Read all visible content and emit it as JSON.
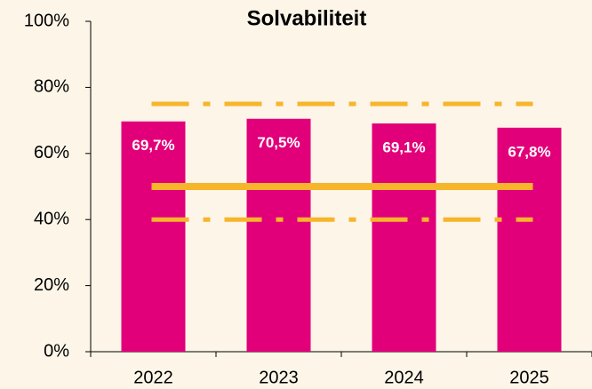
{
  "chart_data": {
    "type": "bar",
    "title": "Solvabiliteit",
    "categories": [
      "2022",
      "2023",
      "2024",
      "2025"
    ],
    "values": [
      69.7,
      70.5,
      69.1,
      67.8
    ],
    "value_labels": [
      "69,7%",
      "70,5%",
      "69,1%",
      "67,8%"
    ],
    "color": "#e2007a",
    "ylim": [
      0,
      100
    ],
    "yticks": [
      {
        "value": 0,
        "label": "0%"
      },
      {
        "value": 20,
        "label": "20%"
      },
      {
        "value": 40,
        "label": "40%"
      },
      {
        "value": 60,
        "label": "60%"
      },
      {
        "value": 80,
        "label": "80%"
      },
      {
        "value": 100,
        "label": "100%"
      }
    ],
    "reference_lines": [
      {
        "value": 75,
        "style": "dash-dot",
        "color": "#f7b52c"
      },
      {
        "value": 50,
        "style": "solid",
        "color": "#f7b52c"
      },
      {
        "value": 40,
        "style": "dash-dot",
        "color": "#f7b52c"
      }
    ],
    "grid": false
  }
}
